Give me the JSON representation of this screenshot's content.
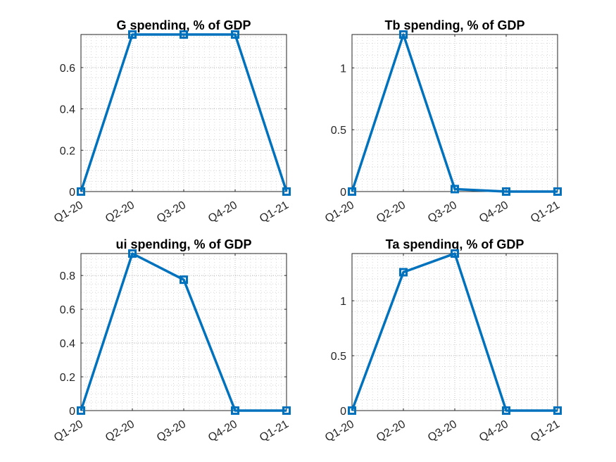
{
  "chart_data": [
    {
      "type": "line",
      "title": "G spending, % of GDP",
      "categories": [
        "Q1-20",
        "Q2-20",
        "Q3-20",
        "Q4-20",
        "Q1-21"
      ],
      "values": [
        0,
        0.76,
        0.76,
        0.76,
        0
      ],
      "ylim": [
        0,
        0.76
      ],
      "yticks": [
        0,
        0.2,
        0.4,
        0.6
      ],
      "ytick_labels": [
        "0",
        "0.2",
        "0.4",
        "0.6"
      ],
      "grid": true,
      "marker": "square",
      "color": "#0072BD"
    },
    {
      "type": "line",
      "title": "Tb spending, % of GDP",
      "categories": [
        "Q1-20",
        "Q2-20",
        "Q3-20",
        "Q4-20",
        "Q1-21"
      ],
      "values": [
        0,
        1.27,
        0.02,
        0,
        0
      ],
      "ylim": [
        0,
        1.27
      ],
      "yticks": [
        0,
        0.5,
        1
      ],
      "ytick_labels": [
        "0",
        "0.5",
        "1"
      ],
      "grid": true,
      "marker": "square",
      "color": "#0072BD"
    },
    {
      "type": "line",
      "title": "ui spending, % of GDP",
      "categories": [
        "Q1-20",
        "Q2-20",
        "Q3-20",
        "Q4-20",
        "Q1-21"
      ],
      "values": [
        0,
        0.93,
        0.775,
        0,
        0
      ],
      "ylim": [
        0,
        0.93
      ],
      "yticks": [
        0,
        0.2,
        0.4,
        0.6,
        0.8
      ],
      "ytick_labels": [
        "0",
        "0.2",
        "0.4",
        "0.6",
        "0.8"
      ],
      "grid": true,
      "marker": "square",
      "color": "#0072BD"
    },
    {
      "type": "line",
      "title": "Ta spending, % of GDP",
      "categories": [
        "Q1-20",
        "Q2-20",
        "Q3-20",
        "Q4-20",
        "Q1-21"
      ],
      "values": [
        0,
        1.26,
        1.43,
        0,
        0
      ],
      "ylim": [
        0,
        1.43
      ],
      "yticks": [
        0,
        0.5,
        1
      ],
      "ytick_labels": [
        "0",
        "0.5",
        "1"
      ],
      "grid": true,
      "marker": "square",
      "color": "#0072BD"
    }
  ]
}
